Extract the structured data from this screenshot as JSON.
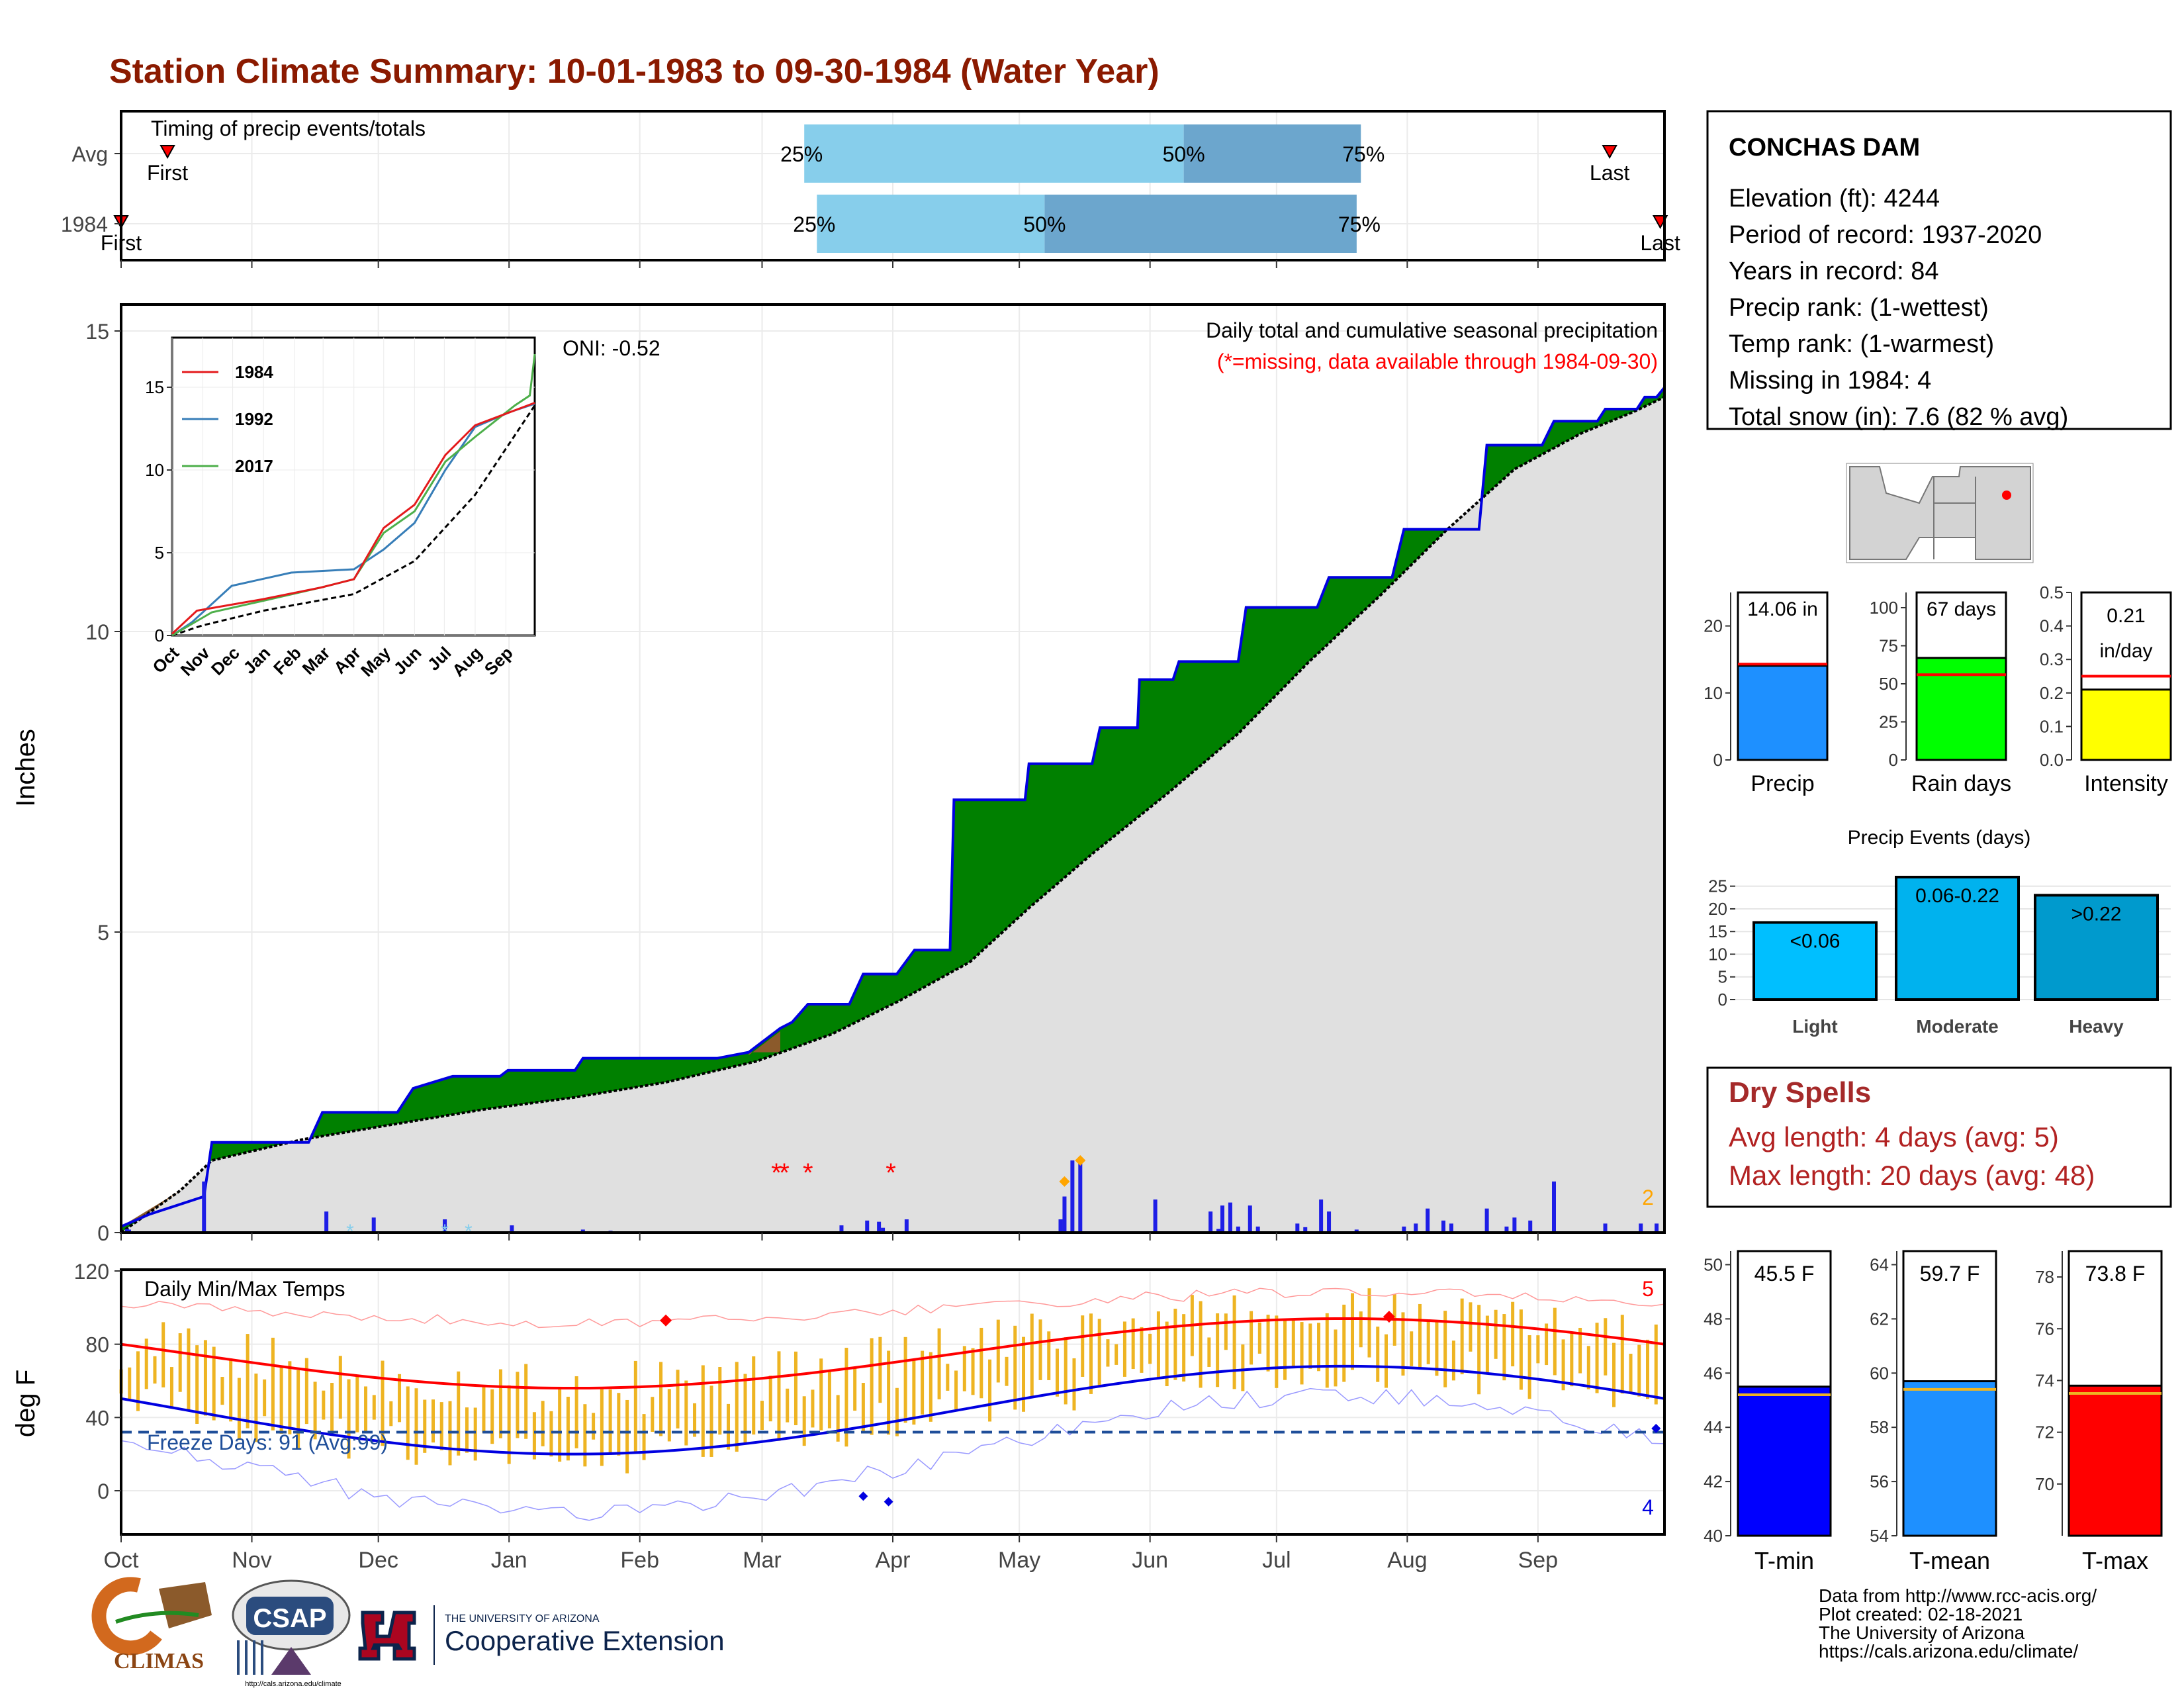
{
  "title": "Station Climate Summary: 10-01-1983 to 09-30-1984 (Water Year)",
  "colors": {
    "title": "#8B1A00",
    "green": "#008000",
    "brown": "#8B5A2B",
    "precip_bar": "#1E1EE6",
    "temp_bar": "#EEB422",
    "light_blue": "#87CEEB",
    "mid_blue": "#6CA6CD"
  },
  "timing": {
    "label": "Timing of precip events/totals",
    "rows": [
      {
        "name": "Avg",
        "first_label": "First",
        "last_label": "Last",
        "p25": "25%",
        "p50": "50%",
        "p75": "75%",
        "first_doy": 11,
        "last_doy": 353,
        "q25_doy": 162,
        "q50_doy": 252,
        "q75_doy": 294
      },
      {
        "name": "1984",
        "first_label": "First",
        "last_label": "Last",
        "p25": "25%",
        "p50": "50%",
        "p75": "75%",
        "first_doy": 0,
        "last_doy": 365,
        "q25_doy": 165,
        "q50_doy": 219,
        "q75_doy": 293
      }
    ]
  },
  "station": {
    "name": "CONCHAS DAM",
    "lines": [
      "Elevation (ft): 4244",
      "Period of record: 1937-2020",
      "Years in record: 84",
      "Precip rank:  (1-wettest)",
      "Temp rank:  (1-warmest)",
      "Missing in 1984: 4",
      "Total snow (in): 7.6 (82 % avg)"
    ]
  },
  "month_labels": [
    "Oct",
    "Nov",
    "Dec",
    "Jan",
    "Feb",
    "Mar",
    "Apr",
    "May",
    "Jun",
    "Jul",
    "Aug",
    "Sep"
  ],
  "precip_panel": {
    "ylabel": "Inches",
    "oni": "ONI: -0.52",
    "caption": "Daily total and cumulative seasonal precipitation",
    "missing_note": "(*=missing, data available through 1984-09-30)",
    "count_label": "2",
    "yticks": [
      "0",
      "5",
      "10",
      "15"
    ]
  },
  "inset": {
    "legend": [
      "1984",
      "1992",
      "2017"
    ],
    "yticks": [
      "0",
      "5",
      "10",
      "15"
    ],
    "xticks": [
      "Oct",
      "Nov",
      "Dec",
      "Jan",
      "Feb",
      "Mar",
      "Apr",
      "May",
      "Jun",
      "Jul",
      "Aug",
      "Sep"
    ]
  },
  "summary_bars": [
    {
      "label": "Precip",
      "value_text": "14.06 in",
      "value": 14.06,
      "avg": 14.3,
      "ymax": 25,
      "ticks": [
        "0",
        "10",
        "20"
      ],
      "color": "#1E90FF"
    },
    {
      "label": "Rain days",
      "value_text": "67 days",
      "value": 67,
      "avg": 56,
      "ymax": 110,
      "ticks": [
        "0",
        "25",
        "50",
        "75",
        "100"
      ],
      "color": "#00FF00"
    },
    {
      "label": "Intensity",
      "value_text": "0.21 in/day",
      "value": 0.21,
      "avg": 0.25,
      "ymax": 0.5,
      "ticks": [
        "0.0",
        "0.1",
        "0.2",
        "0.3",
        "0.4",
        "0.5"
      ],
      "color": "#FFFF00"
    }
  ],
  "events": {
    "title": "Precip Events (days)",
    "ticks": [
      "0",
      "5",
      "10",
      "15",
      "20",
      "25"
    ],
    "bars": [
      {
        "label": "Light",
        "value_text": "<0.06",
        "value": 17
      },
      {
        "label": "Moderate",
        "value_text": "0.06-0.22",
        "value": 27
      },
      {
        "label": "Heavy",
        "value_text": ">0.22",
        "value": 23
      }
    ]
  },
  "dry_spells": {
    "title": "Dry Spells",
    "avg_line": "Avg length: 4 days (avg: 5)",
    "max_line": "Max length: 20 days (avg: 48)"
  },
  "temp_panel": {
    "ylabel": "deg F",
    "label": "Daily Min/Max Temps",
    "freeze": "Freeze Days: 91 (Avg:99)",
    "count_top": "5",
    "count_bottom": "4",
    "yticks": [
      "0",
      "40",
      "80",
      "120"
    ]
  },
  "temp_bars": [
    {
      "label": "T-min",
      "value_text": "45.5 F",
      "value": 45.5,
      "avg": 45.2,
      "ymin": 40,
      "ymax": 50.5,
      "ticks": [
        "40",
        "42",
        "44",
        "46",
        "48",
        "50"
      ],
      "color": "#0000FF"
    },
    {
      "label": "T-mean",
      "value_text": "59.7 F",
      "value": 59.7,
      "avg": 59.4,
      "ymin": 54,
      "ymax": 64.5,
      "ticks": [
        "54",
        "56",
        "58",
        "60",
        "62",
        "64"
      ],
      "color": "#1E90FF"
    },
    {
      "label": "T-max",
      "value_text": "73.8 F",
      "value": 73.8,
      "avg": 73.5,
      "ymin": 68,
      "ymax": 79,
      "ticks": [
        "70",
        "72",
        "74",
        "76",
        "78"
      ],
      "color": "#FF0000"
    }
  ],
  "credits": [
    "Data from http://www.rcc-acis.org/",
    "Plot created: 02-18-2021",
    "The University of Arizona",
    "https://cals.arizona.edu/climate/"
  ],
  "logos": {
    "climas": "CLIMAS",
    "csap": "CSAP",
    "ua_small": "THE UNIVERSITY OF ARIZONA",
    "ua_big": "Cooperative Extension",
    "csap_url": "http://cals.arizona.edu/climate"
  },
  "chart_data": {
    "type": "area",
    "title": "Station Climate Summary: 10-01-1983 to 09-30-1984 (Water Year)",
    "ylabel": "Inches",
    "ylim": [
      0,
      15.3
    ],
    "cumulative_1984": [
      [
        0,
        0.1
      ],
      [
        14,
        0.3
      ],
      [
        42,
        0.6
      ],
      [
        46,
        1.5
      ],
      [
        95,
        1.5
      ],
      [
        102,
        2.0
      ],
      [
        140,
        2.0
      ],
      [
        148,
        2.4
      ],
      [
        168,
        2.6
      ],
      [
        192,
        2.6
      ],
      [
        196,
        2.7
      ],
      [
        230,
        2.7
      ],
      [
        234,
        2.9
      ],
      [
        302,
        2.9
      ],
      [
        318,
        3.0
      ],
      [
        334,
        3.4
      ],
      [
        340,
        3.5
      ],
      [
        348,
        3.8
      ],
      [
        369,
        3.8
      ],
      [
        376,
        4.3
      ],
      [
        393,
        4.3
      ],
      [
        402,
        4.7
      ],
      [
        420,
        4.7
      ],
      [
        422,
        7.2
      ],
      [
        458,
        7.2
      ],
      [
        460,
        7.8
      ],
      [
        492,
        7.8
      ],
      [
        496,
        8.4
      ],
      [
        515,
        8.4
      ],
      [
        516,
        9.2
      ],
      [
        533,
        9.2
      ],
      [
        536,
        9.5
      ],
      [
        566,
        9.5
      ],
      [
        570,
        10.4
      ],
      [
        606,
        10.4
      ],
      [
        612,
        10.9
      ],
      [
        644,
        10.9
      ],
      [
        650,
        11.7
      ],
      [
        688,
        11.7
      ],
      [
        692,
        13.1
      ],
      [
        720,
        13.1
      ],
      [
        726,
        13.5
      ],
      [
        748,
        13.5
      ],
      [
        752,
        13.7
      ],
      [
        768,
        13.7
      ],
      [
        772,
        13.9
      ],
      [
        778,
        13.9
      ],
      [
        782,
        14.06
      ]
    ],
    "avg_cumulative": [
      [
        0,
        0.0
      ],
      [
        30,
        0.7
      ],
      [
        46,
        1.2
      ],
      [
        92,
        1.55
      ],
      [
        138,
        1.8
      ],
      [
        184,
        2.05
      ],
      [
        230,
        2.25
      ],
      [
        276,
        2.5
      ],
      [
        322,
        2.85
      ],
      [
        360,
        3.3
      ],
      [
        394,
        3.85
      ],
      [
        430,
        4.5
      ],
      [
        460,
        5.4
      ],
      [
        492,
        6.3
      ],
      [
        530,
        7.3
      ],
      [
        566,
        8.3
      ],
      [
        602,
        9.5
      ],
      [
        638,
        10.6
      ],
      [
        672,
        11.7
      ],
      [
        706,
        12.7
      ],
      [
        740,
        13.3
      ],
      [
        766,
        13.65
      ],
      [
        782,
        13.9
      ]
    ],
    "daily_precip": [
      [
        3,
        0.06
      ],
      [
        4,
        0.05
      ],
      [
        42,
        0.85
      ],
      [
        104,
        0.35
      ],
      [
        128,
        0.25
      ],
      [
        164,
        0.22
      ],
      [
        198,
        0.12
      ],
      [
        234,
        0.05
      ],
      [
        248,
        0.03
      ],
      [
        365,
        0.12
      ],
      [
        378,
        0.2
      ],
      [
        384,
        0.18
      ],
      [
        386,
        0.08
      ],
      [
        398,
        0.22
      ],
      [
        476,
        0.22
      ],
      [
        478,
        0.6
      ],
      [
        482,
        1.2
      ],
      [
        486,
        1.15
      ],
      [
        524,
        0.55
      ],
      [
        552,
        0.35
      ],
      [
        556,
        0.06
      ],
      [
        558,
        0.45
      ],
      [
        562,
        0.5
      ],
      [
        566,
        0.1
      ],
      [
        572,
        0.45
      ],
      [
        576,
        0.1
      ],
      [
        596,
        0.15
      ],
      [
        600,
        0.09
      ],
      [
        608,
        0.55
      ],
      [
        612,
        0.35
      ],
      [
        626,
        0.05
      ],
      [
        650,
        0.1
      ],
      [
        656,
        0.15
      ],
      [
        662,
        0.4
      ],
      [
        670,
        0.2
      ],
      [
        674,
        0.15
      ],
      [
        692,
        0.4
      ],
      [
        702,
        0.1
      ],
      [
        706,
        0.25
      ],
      [
        714,
        0.2
      ],
      [
        726,
        0.85
      ],
      [
        752,
        0.15
      ],
      [
        770,
        0.15
      ],
      [
        778,
        0.15
      ]
    ],
    "missing_days": [
      [
        332,
        1.0
      ],
      [
        336,
        1.0
      ],
      [
        348,
        1.0
      ],
      [
        390,
        1.0
      ]
    ],
    "freeze_days": 91,
    "freeze_days_avg": 99,
    "temp_ylim": [
      -20,
      120
    ]
  }
}
